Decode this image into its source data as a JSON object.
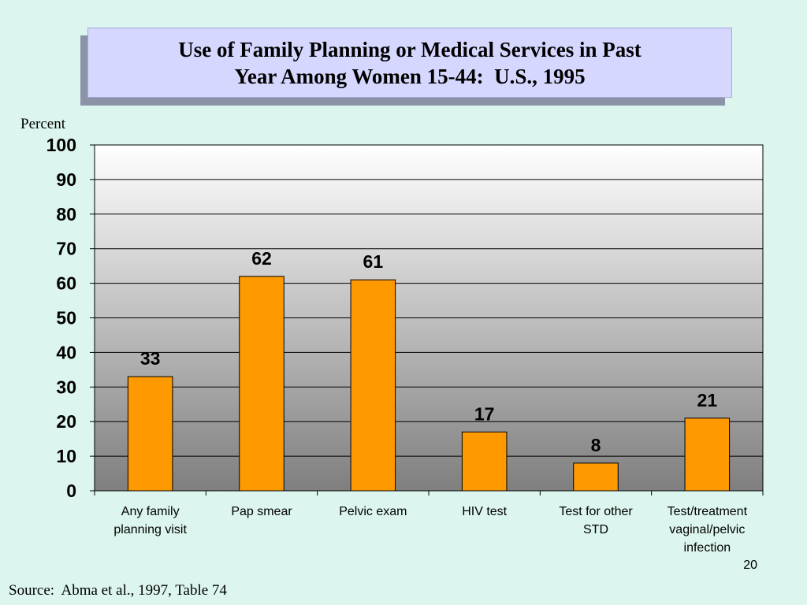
{
  "slide": {
    "title_lines": [
      "Use of Family Planning or Medical Services in Past",
      "Year Among Women 15-44:  U.S., 1995"
    ],
    "slide_number": "20",
    "source": "Source:  Abma et al., 1997, Table 74"
  },
  "chart_data": {
    "type": "bar",
    "title": "Use of Family Planning or Medical Services in Past Year Among Women 15-44:  U.S., 1995",
    "xlabel": "",
    "ylabel": "Percent",
    "ylim": [
      0,
      100
    ],
    "yticks": [
      0,
      10,
      20,
      30,
      40,
      50,
      60,
      70,
      80,
      90,
      100
    ],
    "grid": true,
    "legend": "none",
    "categories": [
      [
        "Any family",
        "planning visit"
      ],
      [
        "Pap smear"
      ],
      [
        "Pelvic  exam"
      ],
      [
        "HIV test"
      ],
      [
        "Test for other",
        "STD"
      ],
      [
        "Test/treatment",
        "vaginal/pelvic",
        "infection"
      ]
    ],
    "values": [
      33,
      62,
      61,
      17,
      8,
      21
    ],
    "data_labels": [
      "33",
      "62",
      "61",
      "17",
      "8",
      "21"
    ],
    "bar_color": "#ff9900",
    "plot_background": "gradient white-to-gray"
  }
}
